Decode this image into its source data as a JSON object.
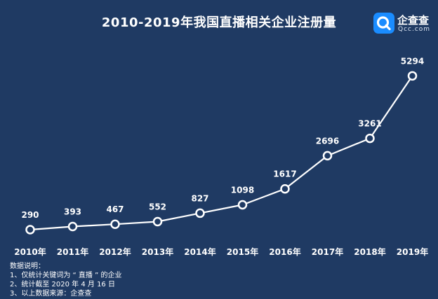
{
  "chart_data": {
    "type": "line",
    "title": "2010-2019年我国直播相关企业注册量",
    "categories": [
      "2010年",
      "2011年",
      "2012年",
      "2013年",
      "2014年",
      "2015年",
      "2016年",
      "2017年",
      "2018年",
      "2019年"
    ],
    "series": [
      {
        "values": [
          290,
          393,
          467,
          552,
          827,
          1098,
          1617,
          2696,
          3261,
          5294
        ]
      }
    ],
    "xlabel": "",
    "ylabel": "",
    "grid": false,
    "colors": {
      "line": "#ffffff",
      "background": "#1f3a63",
      "marker_fill": "#1f3a63"
    }
  },
  "logo": {
    "text": "企查查",
    "sub": "Qcc.com",
    "mark_color": "#1a8cff",
    "icon": "qcc-logo-icon"
  },
  "notes": {
    "heading": "数据说明：",
    "lines": [
      "1、仅统计关键词为 “ 直播 ” 的企业",
      "2、统计截至 2020 年 4 月 16 日",
      "3、以上数据来源：企查查"
    ]
  }
}
